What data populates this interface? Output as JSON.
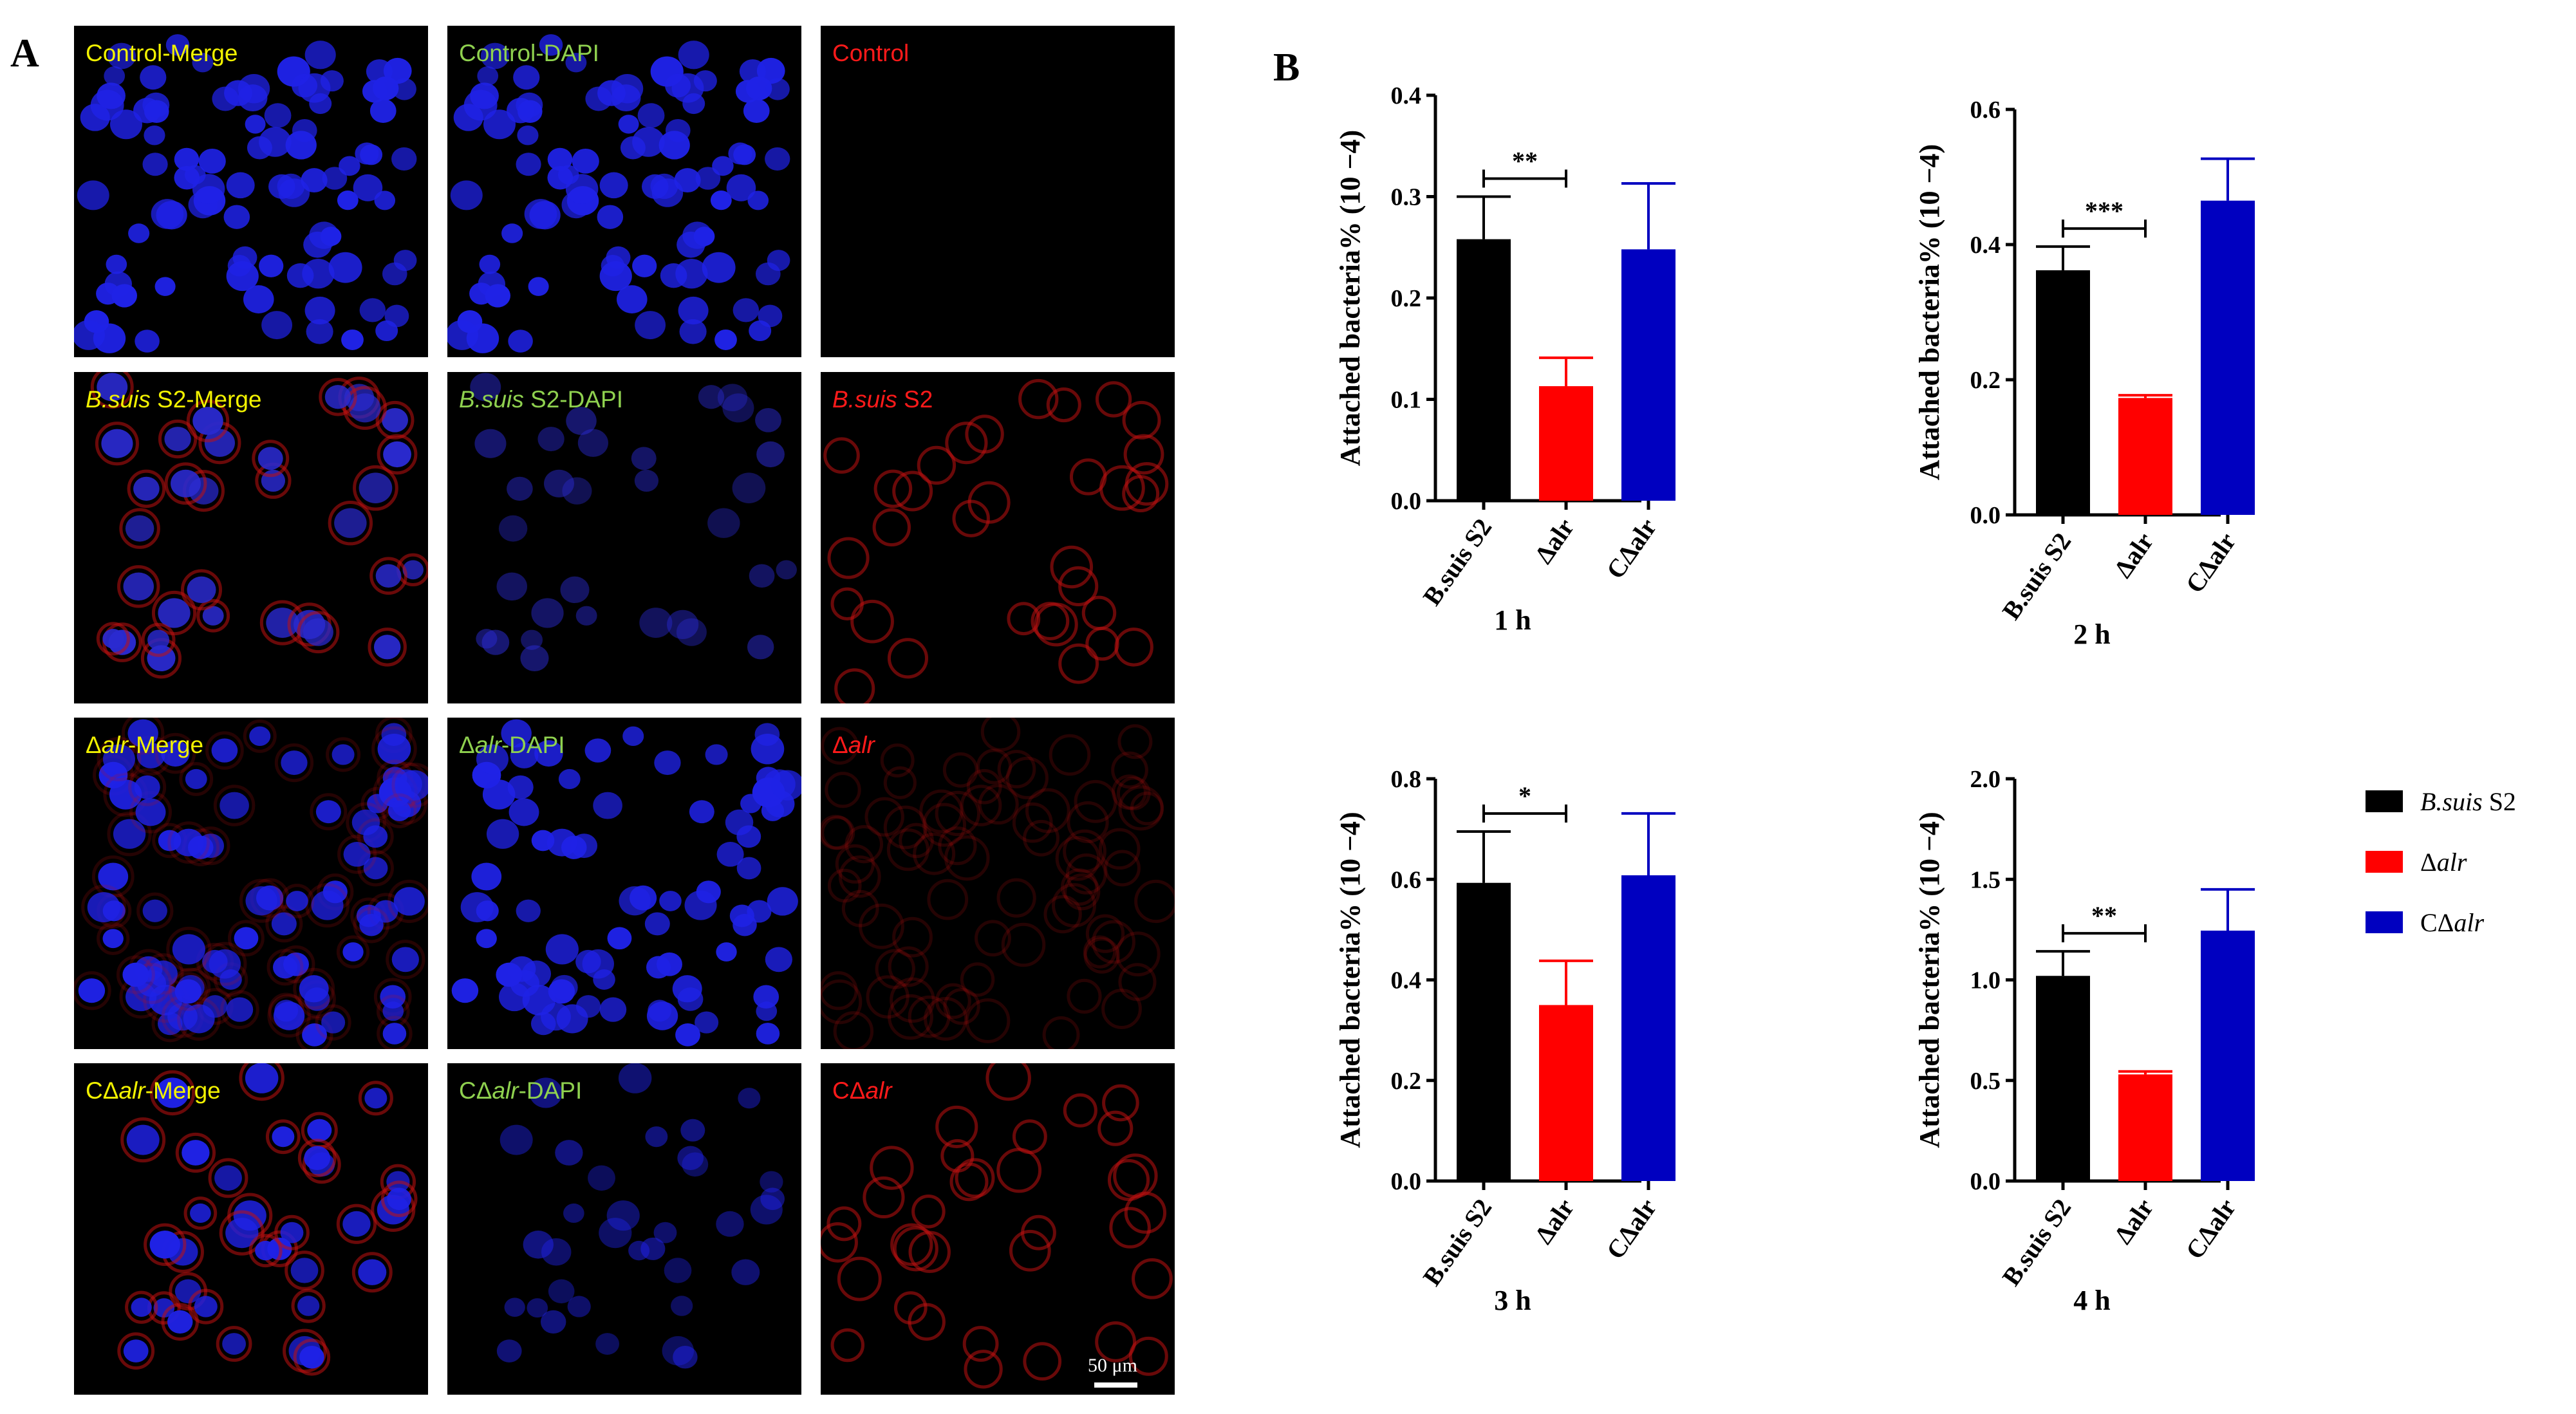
{
  "panel_a_label": "A",
  "panel_b_label": "B",
  "micrographs": {
    "rows": [
      {
        "merge": {
          "pre": "Control-Merge",
          "it": "",
          "post": ""
        },
        "dapi": {
          "pre": "Control-DAPI",
          "it": "",
          "post": ""
        },
        "red": {
          "pre": "Control",
          "it": "",
          "post": ""
        }
      },
      {
        "merge": {
          "pre": "",
          "it": "B.suis",
          "post": " S2-Merge"
        },
        "dapi": {
          "pre": "",
          "it": "B.suis",
          "post": " S2-DAPI"
        },
        "red": {
          "pre": "",
          "it": "B.suis",
          "post": " S2"
        }
      },
      {
        "merge": {
          "pre": "Δ",
          "it": "alr",
          "post": "-Merge"
        },
        "dapi": {
          "pre": "Δ",
          "it": "alr",
          "post": "-DAPI"
        },
        "red": {
          "pre": "Δ",
          "it": "alr",
          "post": ""
        }
      },
      {
        "merge": {
          "pre": "CΔ",
          "it": "alr",
          "post": "-Merge"
        },
        "dapi": {
          "pre": "CΔ",
          "it": "alr",
          "post": "-DAPI"
        },
        "red": {
          "pre": "CΔ",
          "it": "alr",
          "post": ""
        }
      }
    ],
    "scale_bar_label": "50 μm"
  },
  "chart_data": [
    {
      "type": "bar",
      "title": "1 h",
      "ylabel": "Attached bacteria% (10 −4)",
      "categories": [
        "B.suis S2",
        "Δalr",
        "CΔalr"
      ],
      "values": [
        0.258,
        0.113,
        0.248
      ],
      "errors": [
        0.042,
        0.028,
        0.065
      ],
      "ylim": [
        0,
        0.4
      ],
      "yticks": [
        "0.0",
        "0.1",
        "0.2",
        "0.3",
        "0.4"
      ],
      "significance": "**"
    },
    {
      "type": "bar",
      "title": "2 h",
      "ylabel": "Attached bacteria% (10 −4)",
      "categories": [
        "B.suis S2",
        "Δalr",
        "CΔalr"
      ],
      "values": [
        0.362,
        0.173,
        0.465
      ],
      "errors": [
        0.035,
        0.004,
        0.062
      ],
      "ylim": [
        0,
        0.6
      ],
      "yticks": [
        "0.0",
        "0.2",
        "0.4",
        "0.6"
      ],
      "significance": "***"
    },
    {
      "type": "bar",
      "title": "3 h",
      "ylabel": "Attached bacteria% (10 −4)",
      "categories": [
        "B.suis S2",
        "Δalr",
        "CΔalr"
      ],
      "values": [
        0.593,
        0.35,
        0.608
      ],
      "errors": [
        0.102,
        0.088,
        0.123
      ],
      "ylim": [
        0,
        0.8
      ],
      "yticks": [
        "0.0",
        "0.2",
        "0.4",
        "0.6",
        "0.8"
      ],
      "significance": "*"
    },
    {
      "type": "bar",
      "title": "4 h",
      "ylabel": "Attached bacteria% (10 −4)",
      "categories": [
        "B.suis S2",
        "Δalr",
        "CΔalr"
      ],
      "values": [
        1.02,
        0.53,
        1.245
      ],
      "errors": [
        0.122,
        0.015,
        0.205
      ],
      "ylim": [
        0,
        2.0
      ],
      "yticks": [
        "0.0",
        "0.5",
        "1.0",
        "1.5",
        "2.0"
      ],
      "significance": "**"
    }
  ],
  "legend": [
    {
      "pre": "",
      "it": "B.suis",
      "post": " S2",
      "color": "#000000"
    },
    {
      "pre": "Δ",
      "it": "alr",
      "post": "",
      "color": "#ff0000"
    },
    {
      "pre": "CΔ",
      "it": "alr",
      "post": "",
      "color": "#0000c0"
    }
  ],
  "colors": {
    "wt": "#000000",
    "mutant": "#ff0000",
    "complement": "#0000c0"
  }
}
